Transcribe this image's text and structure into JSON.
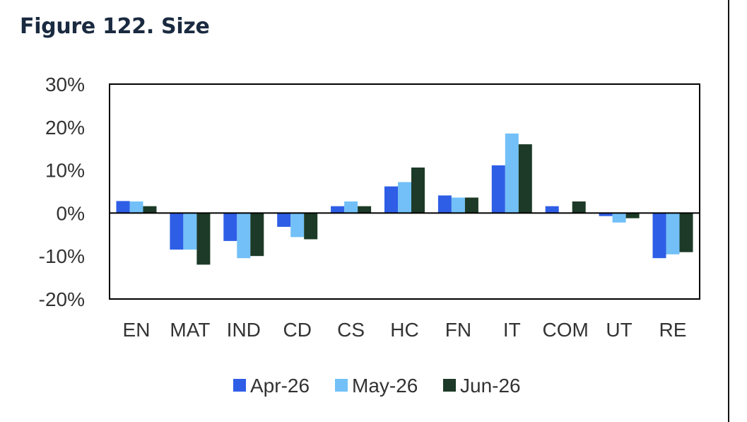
{
  "figure": {
    "title": "Figure 122. Size"
  },
  "colors": {
    "apr": "#2f5ee6",
    "may": "#72c0f7",
    "jun": "#1c3a27",
    "axis": "#000000",
    "text": "#333333"
  },
  "chart_data": {
    "type": "bar",
    "title": "Figure 122. Size",
    "xlabel": "",
    "ylabel": "",
    "ylim": [
      -20,
      30
    ],
    "y_ticks": [
      30,
      20,
      10,
      0,
      -10,
      -20
    ],
    "y_tick_labels": [
      "30%",
      "20%",
      "10%",
      "0%",
      "-10%",
      "-20%"
    ],
    "grid": false,
    "legend_position": "bottom",
    "categories": [
      "EN",
      "MAT",
      "IND",
      "CD",
      "CS",
      "HC",
      "FN",
      "IT",
      "COM",
      "UT",
      "RE"
    ],
    "series": [
      {
        "name": "Apr-26",
        "color": "#2f5ee6",
        "values": [
          2.8,
          -8.5,
          -6.5,
          -3.2,
          1.6,
          6.2,
          4.1,
          11.1,
          1.6,
          -0.7,
          -10.5
        ]
      },
      {
        "name": "May-26",
        "color": "#72c0f7",
        "values": [
          2.7,
          -8.5,
          -10.5,
          -5.6,
          2.7,
          7.2,
          3.6,
          18.5,
          0,
          -2.2,
          -9.6
        ]
      },
      {
        "name": "Jun-26",
        "color": "#1c3a27",
        "values": [
          1.6,
          -12.0,
          -10.0,
          -6.1,
          1.6,
          10.6,
          3.6,
          16.0,
          2.7,
          -1.2,
          -9.1
        ]
      }
    ]
  }
}
